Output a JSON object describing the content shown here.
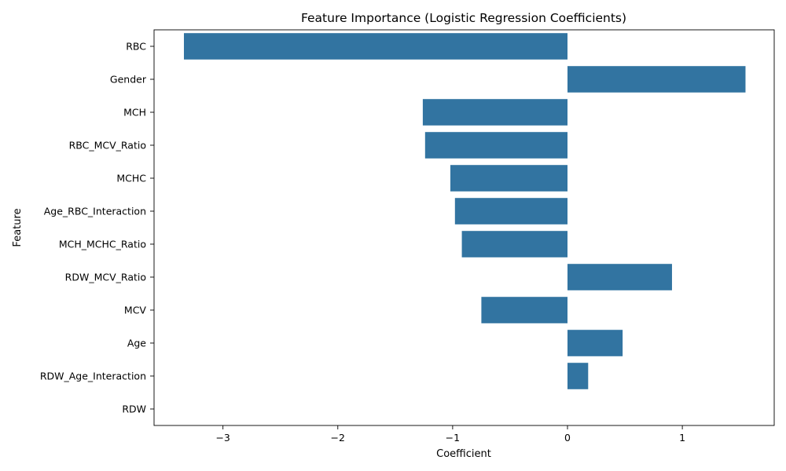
{
  "chart_data": {
    "type": "bar",
    "orientation": "horizontal",
    "title": "Feature Importance (Logistic Regression Coefficients)",
    "xlabel": "Coefficient",
    "ylabel": "Feature",
    "categories": [
      "RBC",
      "Gender",
      "MCH",
      "RBC_MCV_Ratio",
      "MCHC",
      "Age_RBC_Interaction",
      "MCH_MCHC_Ratio",
      "RDW_MCV_Ratio",
      "MCV",
      "Age",
      "RDW_Age_Interaction",
      "RDW"
    ],
    "values": [
      -3.34,
      1.55,
      -1.26,
      -1.24,
      -1.02,
      -0.98,
      -0.92,
      0.91,
      -0.75,
      0.48,
      0.18,
      0.0
    ],
    "xlim": [
      -3.6,
      1.8
    ],
    "xticks": [
      -3,
      -2,
      -1,
      0,
      1
    ],
    "xtick_labels": [
      "−3",
      "−2",
      "−1",
      "0",
      "1"
    ],
    "bar_color": "#3274a1",
    "grid": false,
    "legend": null
  }
}
